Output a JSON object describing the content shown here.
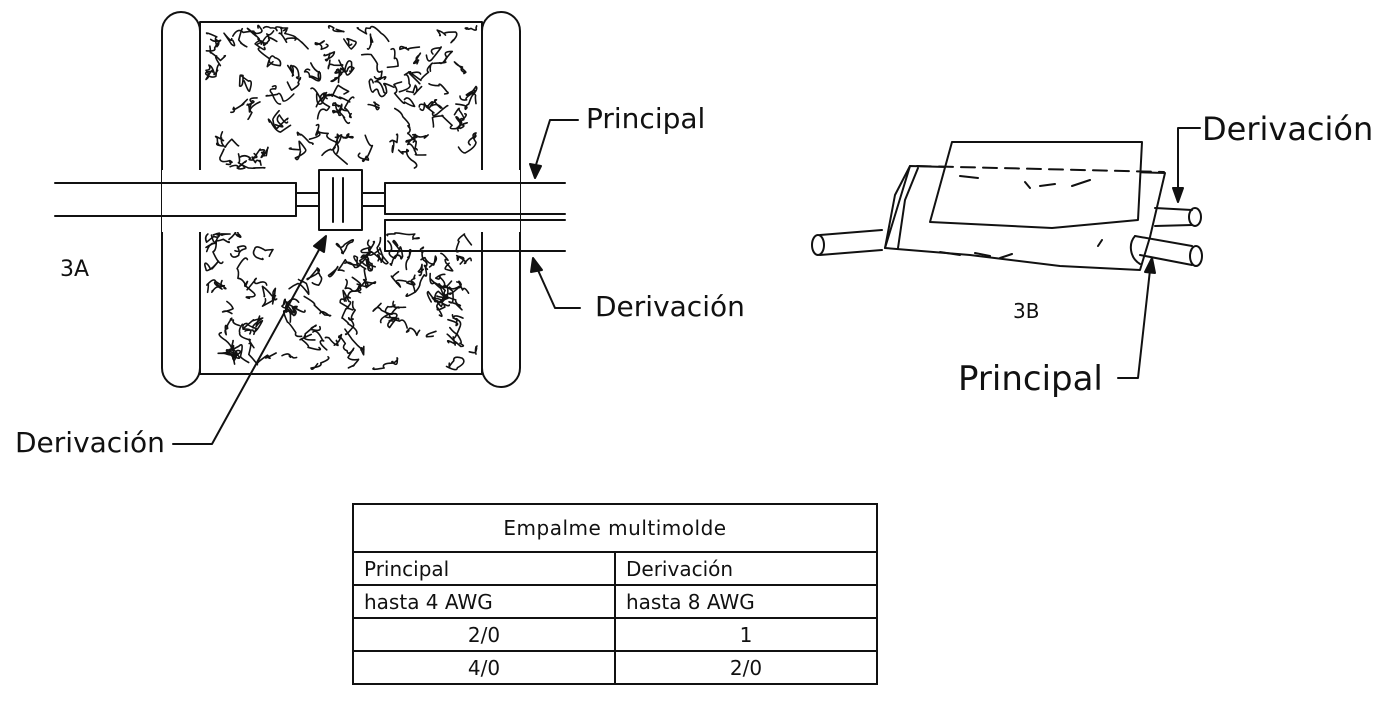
{
  "figure_3a": {
    "caption": "3A",
    "labels": {
      "principal": "Principal",
      "derivacion_right": "Derivación",
      "derivacion_bottom": "Derivación"
    }
  },
  "figure_3b": {
    "caption": "3B",
    "labels": {
      "derivacion": "Derivación",
      "principal": "Principal"
    }
  },
  "table": {
    "title": "Empalme multimolde",
    "headers": [
      "Principal",
      "Derivación"
    ],
    "rows": [
      [
        "hasta 4 AWG",
        "hasta 8 AWG"
      ],
      [
        "2/0",
        "1"
      ],
      [
        "4/0",
        "2/0"
      ]
    ]
  },
  "colors": {
    "ink": "#111111",
    "background": "#ffffff"
  }
}
